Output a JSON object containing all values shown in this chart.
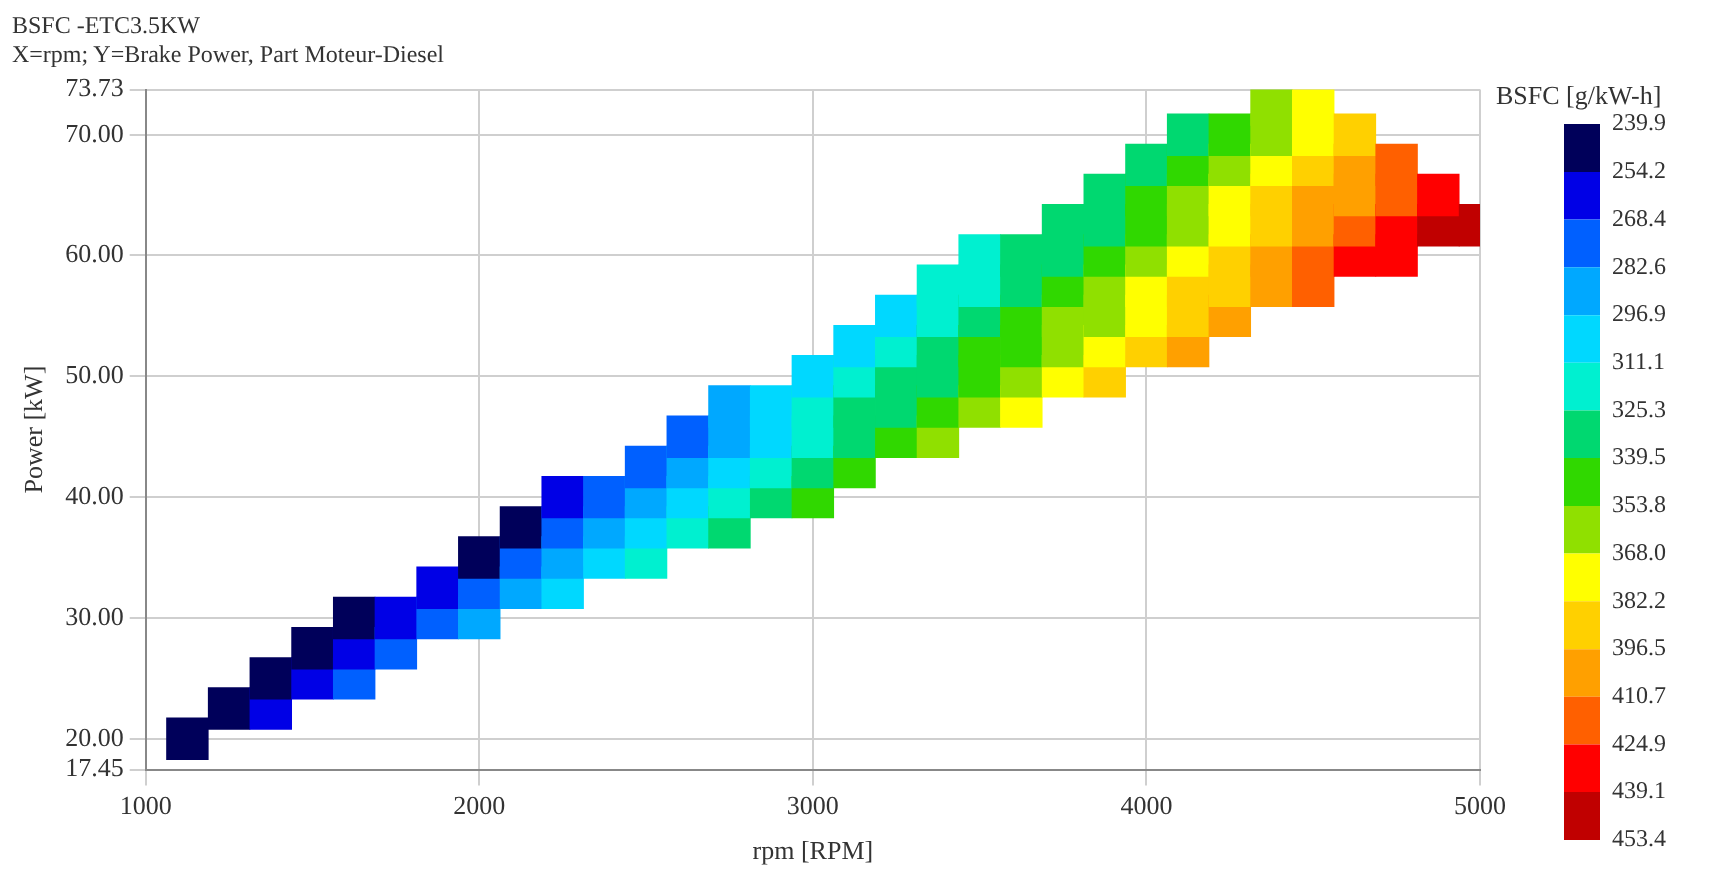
{
  "chart_data": {
    "type": "scatter",
    "title": "BSFC -ETC3.5KW",
    "subtitle": "X=rpm; Y=Brake Power, Part Moteur-Diesel",
    "xlabel": "rpm [RPM]",
    "ylabel": "Power [kW]",
    "clabel": "BSFC [g/kW-h]",
    "xlim": [
      1000,
      5000
    ],
    "xticks": [
      1000,
      2000,
      3000,
      4000,
      5000
    ],
    "ylim": [
      17.45,
      73.73
    ],
    "yticks": [
      17.45,
      {
        "value": 20,
        "label": "20.00"
      },
      {
        "value": 30,
        "label": "30.00"
      },
      {
        "value": 40,
        "label": "40.00"
      },
      {
        "value": 50,
        "label": "50.00"
      },
      {
        "value": 60,
        "label": "60.00"
      },
      {
        "value": 70,
        "label": "70.00"
      },
      73.73
    ],
    "clim": [
      239.9,
      453.4
    ],
    "cticks": [
      239.9,
      254.2,
      268.4,
      282.6,
      296.9,
      311.1,
      325.3,
      339.5,
      353.8,
      {
        "value": 368,
        "label": "368.0"
      },
      382.2,
      396.5,
      410.7,
      424.9,
      439.1,
      453.4
    ],
    "grid": true,
    "marker": "square",
    "series": [
      {
        "x": [
          1125,
          1250,
          1375,
          1375,
          1500,
          1500,
          1625,
          1625,
          1625,
          1750,
          1750,
          1875,
          1875,
          2000,
          2000,
          2000,
          2125,
          2125,
          2125,
          2250,
          2250,
          2250,
          2250,
          2375,
          2375,
          2375,
          2500,
          2500,
          2500,
          2500,
          2625,
          2625,
          2625,
          2625,
          2750,
          2750,
          2750,
          2750,
          2750,
          2875,
          2875,
          2875,
          2875,
          3000,
          3000,
          3000,
          3000,
          3000,
          3125,
          3125,
          3125,
          3125,
          3125,
          3250,
          3250,
          3250,
          3250,
          3250,
          3375,
          3375,
          3375,
          3375,
          3375,
          3375,
          3500,
          3500,
          3500,
          3500,
          3500,
          3500,
          3625,
          3625,
          3625,
          3625,
          3625,
          3625,
          3750,
          3750,
          3750,
          3750,
          3750,
          3750,
          3875,
          3875,
          3875,
          3875,
          3875,
          3875,
          3875,
          4000,
          4000,
          4000,
          4000,
          4000,
          4000,
          4000,
          4125,
          4125,
          4125,
          4125,
          4125,
          4125,
          4125,
          4125,
          4250,
          4250,
          4250,
          4250,
          4250,
          4250,
          4250,
          4375,
          4375,
          4375,
          4375,
          4375,
          4375,
          4375,
          4500,
          4500,
          4500,
          4500,
          4500,
          4500,
          4500,
          4625,
          4625,
          4625,
          4625,
          4625,
          4750,
          4750,
          4750,
          4750,
          4875,
          4875,
          5000
        ],
        "values": [
          20,
          22.5,
          22.5,
          25,
          25,
          27.5,
          25,
          27.5,
          30,
          27.5,
          30,
          30,
          32.5,
          30,
          32.5,
          35,
          32.5,
          35,
          37.5,
          32.5,
          35,
          37.5,
          40,
          35,
          37.5,
          40,
          35,
          37.5,
          40,
          42.5,
          37.5,
          40,
          42.5,
          45,
          37.5,
          40,
          42.5,
          45,
          47.5,
          40,
          42.5,
          45,
          47.5,
          40,
          42.5,
          45,
          47.5,
          50,
          42.5,
          45,
          47.5,
          50,
          52.5,
          45,
          47.5,
          50,
          52.5,
          55,
          45,
          47.5,
          50,
          52.5,
          55,
          57.5,
          47.5,
          50,
          52.5,
          55,
          57.5,
          60,
          47.5,
          50,
          52.5,
          55,
          57.5,
          60,
          50,
          52.5,
          55,
          57.5,
          60,
          62.5,
          50,
          52.5,
          55,
          57.5,
          60,
          62.5,
          65,
          52.5,
          55,
          57.5,
          60,
          62.5,
          65,
          67.5,
          52.5,
          55,
          57.5,
          60,
          62.5,
          65,
          67.5,
          70,
          55,
          57.5,
          60,
          62.5,
          65,
          67.5,
          70,
          57.5,
          60,
          62.5,
          65,
          67.5,
          70,
          72.5,
          57.5,
          60,
          62.5,
          65,
          67.5,
          70,
          72.5,
          60,
          62.5,
          65,
          67.5,
          70,
          60,
          62.5,
          65,
          67.5,
          62.5,
          65,
          62.5
        ],
        "cvalues": [
          241,
          242,
          258,
          243,
          260,
          245,
          275,
          259,
          243,
          274,
          257,
          273,
          255,
          290,
          271,
          252,
          288,
          271,
          254,
          304,
          288,
          271,
          255,
          303,
          288,
          272,
          317,
          302,
          288,
          274,
          317,
          304,
          292,
          279,
          329,
          318,
          307,
          296,
          285,
          330,
          320,
          311,
          301,
          340,
          332,
          323,
          315,
          307,
          342,
          334,
          326,
          317,
          309,
          345,
          336,
          328,
          319,
          311,
          356,
          347,
          339,
          330,
          322,
          313,
          358,
          350,
          341,
          332,
          324,
          315,
          370,
          361,
          352,
          343,
          335,
          326,
          373,
          364,
          355,
          346,
          337,
          327,
          386,
          376,
          367,
          358,
          348,
          339,
          329,
          389,
          380,
          370,
          360,
          350,
          340,
          331,
          402,
          392,
          383,
          374,
          364,
          355,
          345,
          336,
          405,
          396,
          387,
          378,
          369,
          360,
          350,
          409,
          400,
          392,
          383,
          374,
          366,
          357,
          422,
          414,
          405,
          397,
          389,
          381,
          372,
          425,
          417,
          409,
          400,
          392,
          437,
          429,
          420,
          412,
          440,
          431,
          452
        ]
      }
    ]
  }
}
